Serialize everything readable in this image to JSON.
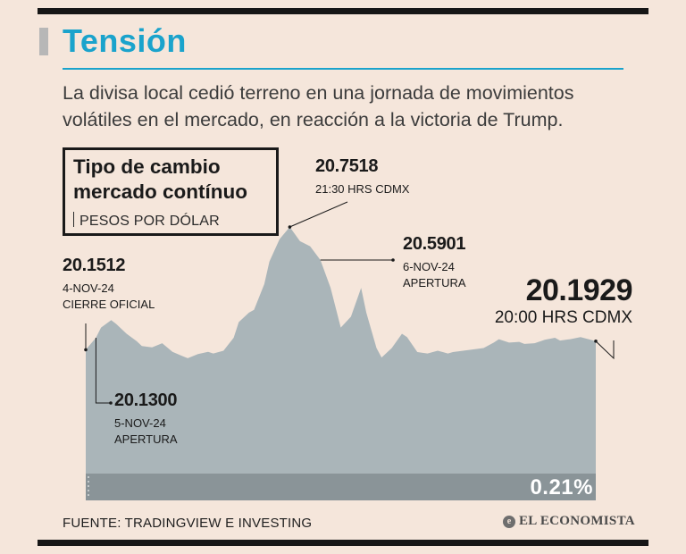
{
  "header": {
    "title": "Tensión",
    "subtitle": "La divisa local cedió terreno en una jornada de movimientos volátiles en el mercado, en reacción a la victoria de Trump."
  },
  "legend_box": {
    "title_line1": "Tipo de cambio",
    "title_line2": "mercado contínuo",
    "unit": "PESOS POR DÓLAR"
  },
  "annotations": {
    "close_nov4": {
      "value": "20.1512",
      "line1": "4-NOV-24",
      "line2": "CIERRE OFICIAL"
    },
    "open_nov5": {
      "value": "20.1300",
      "line1": "5-NOV-24",
      "line2": "APERTURA"
    },
    "peak": {
      "value": "20.7518",
      "line1": "21:30 HRS CDMX"
    },
    "open_nov6": {
      "value": "20.5901",
      "line1": "6-NOV-24",
      "line2": "APERTURA"
    },
    "last": {
      "value": "20.1929",
      "line1": "20:00 HRS CDMX"
    }
  },
  "change": {
    "label": "0.21%"
  },
  "footer": {
    "source": "FUENTE: TRADINGVIEW E INVESTING",
    "brand": "EL ECONOMISTA",
    "brand_icon": "e"
  },
  "colors": {
    "background": "#f5e6db",
    "area": "#aab5b9",
    "baseline_band": "#8a9498",
    "accent": "#1aa3cc",
    "text": "#1a1a1a"
  },
  "chart_data": {
    "type": "area",
    "title": "Tipo de cambio mercado contínuo",
    "ylabel": "PESOS POR DÓLAR",
    "ylim": [
      19.86,
      20.8
    ],
    "x": [
      0,
      2,
      3,
      5,
      6,
      8,
      10,
      11,
      13,
      15,
      17,
      19,
      20,
      22,
      24,
      25,
      27,
      29,
      30,
      32,
      33,
      35,
      36,
      38,
      40,
      42,
      44,
      46,
      48,
      50,
      52,
      54,
      55,
      57,
      58,
      60,
      62,
      63,
      65,
      67,
      69,
      70,
      71,
      72,
      74,
      76,
      78,
      80,
      81,
      83,
      85,
      86,
      88,
      90,
      92,
      93,
      95,
      97,
      99,
      100
    ],
    "values": [
      20.1512,
      20.2097,
      20.2596,
      20.2962,
      20.2762,
      20.2296,
      20.1929,
      20.1696,
      20.163,
      20.1829,
      20.1413,
      20.1197,
      20.1096,
      20.1296,
      20.1413,
      20.133,
      20.1463,
      20.2096,
      20.2862,
      20.3328,
      20.3461,
      20.4726,
      20.5825,
      20.6923,
      20.7518,
      20.6824,
      20.6574,
      20.5901,
      20.4543,
      20.2596,
      20.3129,
      20.4543,
      20.3328,
      20.1596,
      20.113,
      20.1596,
      20.2295,
      20.2129,
      20.1396,
      20.133,
      20.1463,
      20.1396,
      20.133,
      20.1396,
      20.1463,
      20.1529,
      20.1596,
      20.1862,
      20.2029,
      20.1862,
      20.1896,
      20.1796,
      20.1829,
      20.1996,
      20.2096,
      20.1962,
      20.2029,
      20.2129,
      20.1996,
      20.1929
    ],
    "series": [
      {
        "name": "",
        "values_ref": "values"
      }
    ]
  }
}
